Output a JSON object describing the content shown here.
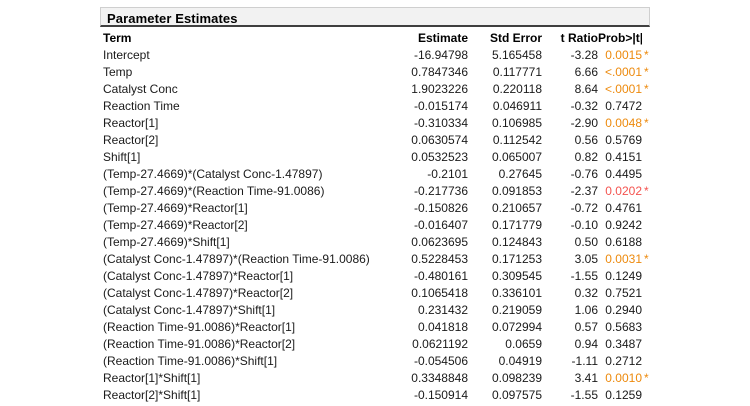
{
  "panel": {
    "title": "Parameter Estimates"
  },
  "table": {
    "headers": {
      "term": "Term",
      "estimate": "Estimate",
      "std_error": "Std Error",
      "t_ratio": "t Ratio",
      "prob": "Prob>|t|"
    },
    "sig_marker": "*",
    "colors": {
      "sig_orange": "#ED8A0D",
      "sig_red": "#F4534F",
      "header_bar_bg": "#F2F2F2",
      "header_bar_edge": "#CFCFCF",
      "header_bar_underline": "#3F3F3F"
    },
    "rows": [
      {
        "term": "Intercept",
        "estimate": "-16.94798",
        "std_error": "5.165458",
        "t_ratio": "-3.28",
        "prob": "0.0015",
        "sig": true,
        "sig_color": "orange"
      },
      {
        "term": "Temp",
        "estimate": "0.7847346",
        "std_error": "0.117771",
        "t_ratio": "6.66",
        "prob": "<.0001",
        "sig": true,
        "sig_color": "orange"
      },
      {
        "term": "Catalyst Conc",
        "estimate": "1.9023226",
        "std_error": "0.220118",
        "t_ratio": "8.64",
        "prob": "<.0001",
        "sig": true,
        "sig_color": "orange"
      },
      {
        "term": "Reaction Time",
        "estimate": "-0.015174",
        "std_error": "0.046911",
        "t_ratio": "-0.32",
        "prob": "0.7472",
        "sig": false,
        "sig_color": null
      },
      {
        "term": "Reactor[1]",
        "estimate": "-0.310334",
        "std_error": "0.106985",
        "t_ratio": "-2.90",
        "prob": "0.0048",
        "sig": true,
        "sig_color": "orange"
      },
      {
        "term": "Reactor[2]",
        "estimate": "0.0630574",
        "std_error": "0.112542",
        "t_ratio": "0.56",
        "prob": "0.5769",
        "sig": false,
        "sig_color": null
      },
      {
        "term": "Shift[1]",
        "estimate": "0.0532523",
        "std_error": "0.065007",
        "t_ratio": "0.82",
        "prob": "0.4151",
        "sig": false,
        "sig_color": null
      },
      {
        "term": "(Temp-27.4669)*(Catalyst Conc-1.47897)",
        "estimate": "-0.2101",
        "std_error": "0.27645",
        "t_ratio": "-0.76",
        "prob": "0.4495",
        "sig": false,
        "sig_color": null
      },
      {
        "term": "(Temp-27.4669)*(Reaction Time-91.0086)",
        "estimate": "-0.217736",
        "std_error": "0.091853",
        "t_ratio": "-2.37",
        "prob": "0.0202",
        "sig": true,
        "sig_color": "red"
      },
      {
        "term": "(Temp-27.4669)*Reactor[1]",
        "estimate": "-0.150826",
        "std_error": "0.210657",
        "t_ratio": "-0.72",
        "prob": "0.4761",
        "sig": false,
        "sig_color": null
      },
      {
        "term": "(Temp-27.4669)*Reactor[2]",
        "estimate": "-0.016407",
        "std_error": "0.171779",
        "t_ratio": "-0.10",
        "prob": "0.9242",
        "sig": false,
        "sig_color": null
      },
      {
        "term": "(Temp-27.4669)*Shift[1]",
        "estimate": "0.0623695",
        "std_error": "0.124843",
        "t_ratio": "0.50",
        "prob": "0.6188",
        "sig": false,
        "sig_color": null
      },
      {
        "term": "(Catalyst Conc-1.47897)*(Reaction Time-91.0086)",
        "estimate": "0.5228453",
        "std_error": "0.171253",
        "t_ratio": "3.05",
        "prob": "0.0031",
        "sig": true,
        "sig_color": "orange"
      },
      {
        "term": "(Catalyst Conc-1.47897)*Reactor[1]",
        "estimate": "-0.480161",
        "std_error": "0.309545",
        "t_ratio": "-1.55",
        "prob": "0.1249",
        "sig": false,
        "sig_color": null
      },
      {
        "term": "(Catalyst Conc-1.47897)*Reactor[2]",
        "estimate": "0.1065418",
        "std_error": "0.336101",
        "t_ratio": "0.32",
        "prob": "0.7521",
        "sig": false,
        "sig_color": null
      },
      {
        "term": "(Catalyst Conc-1.47897)*Shift[1]",
        "estimate": "0.231432",
        "std_error": "0.219059",
        "t_ratio": "1.06",
        "prob": "0.2940",
        "sig": false,
        "sig_color": null
      },
      {
        "term": "(Reaction Time-91.0086)*Reactor[1]",
        "estimate": "0.041818",
        "std_error": "0.072994",
        "t_ratio": "0.57",
        "prob": "0.5683",
        "sig": false,
        "sig_color": null
      },
      {
        "term": "(Reaction Time-91.0086)*Reactor[2]",
        "estimate": "0.0621192",
        "std_error": "0.0659",
        "t_ratio": "0.94",
        "prob": "0.3487",
        "sig": false,
        "sig_color": null
      },
      {
        "term": "(Reaction Time-91.0086)*Shift[1]",
        "estimate": "-0.054506",
        "std_error": "0.04919",
        "t_ratio": "-1.11",
        "prob": "0.2712",
        "sig": false,
        "sig_color": null
      },
      {
        "term": "Reactor[1]*Shift[1]",
        "estimate": "0.3348848",
        "std_error": "0.098239",
        "t_ratio": "3.41",
        "prob": "0.0010",
        "sig": true,
        "sig_color": "orange"
      },
      {
        "term": "Reactor[2]*Shift[1]",
        "estimate": "-0.150914",
        "std_error": "0.097575",
        "t_ratio": "-1.55",
        "prob": "0.1259",
        "sig": false,
        "sig_color": null
      }
    ]
  }
}
